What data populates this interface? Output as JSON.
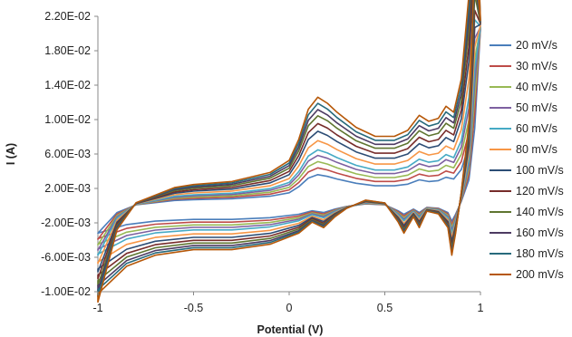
{
  "chart_data": {
    "type": "line",
    "xlabel": "Potential (V)",
    "ylabel": "I (A)",
    "xlim": [
      -1,
      1
    ],
    "ylim": [
      -0.01,
      0.022
    ],
    "x_ticks": [
      "-1",
      "-0.5",
      "0",
      "0.5",
      "1"
    ],
    "y_ticks": [
      "2.20E-02",
      "1.80E-02",
      "1.40E-02",
      "1.00E-02",
      "6.00E-03",
      "2.00E-03",
      "-2.00E-03",
      "-6.00E-03",
      "-1.00E-02"
    ],
    "grid": false,
    "legend_position": "right",
    "base_curve": {
      "anodic_sweep": [
        [
          -1,
          -0.0032
        ],
        [
          -0.9,
          -0.0008
        ],
        [
          -0.8,
          0.0001
        ],
        [
          -0.6,
          0.0006
        ],
        [
          -0.5,
          0.0007
        ],
        [
          -0.3,
          0.0008
        ],
        [
          -0.1,
          0.0011
        ],
        [
          0,
          0.0015
        ],
        [
          0.05,
          0.0022
        ],
        [
          0.1,
          0.0032
        ],
        [
          0.15,
          0.0036
        ],
        [
          0.2,
          0.0034
        ],
        [
          0.25,
          0.0031
        ],
        [
          0.35,
          0.0026
        ],
        [
          0.45,
          0.0023
        ],
        [
          0.55,
          0.0023
        ],
        [
          0.62,
          0.0025
        ],
        [
          0.68,
          0.003
        ],
        [
          0.73,
          0.0028
        ],
        [
          0.78,
          0.0029
        ],
        [
          0.82,
          0.0033
        ],
        [
          0.86,
          0.0031
        ],
        [
          0.9,
          0.0042
        ],
        [
          0.94,
          0.007
        ],
        [
          0.97,
          0.012
        ],
        [
          1,
          0.0205
        ]
      ],
      "cathodic_sweep": [
        [
          1,
          0.0205
        ],
        [
          0.97,
          0.009
        ],
        [
          0.94,
          0.003
        ],
        [
          0.9,
          0.0005
        ],
        [
          0.87,
          -0.001
        ],
        [
          0.85,
          -0.0018
        ],
        [
          0.83,
          -0.0008
        ],
        [
          0.78,
          -0.0003
        ],
        [
          0.72,
          -0.0002
        ],
        [
          0.68,
          -0.0008
        ],
        [
          0.65,
          -0.0004
        ],
        [
          0.6,
          -0.001
        ],
        [
          0.57,
          -0.0006
        ],
        [
          0.5,
          0.0001
        ],
        [
          0.4,
          0.0002
        ],
        [
          0.3,
          -0.0001
        ],
        [
          0.24,
          -0.0004
        ],
        [
          0.18,
          -0.0008
        ],
        [
          0.12,
          -0.0006
        ],
        [
          0.05,
          -0.001
        ],
        [
          -0.1,
          -0.0014
        ],
        [
          -0.3,
          -0.0016
        ],
        [
          -0.5,
          -0.0016
        ],
        [
          -0.7,
          -0.0018
        ],
        [
          -0.85,
          -0.0022
        ],
        [
          -1,
          -0.0032
        ]
      ]
    },
    "series": [
      {
        "name": "20 mV/s",
        "color": "#4a7ebb",
        "anodic_scale": 1.0,
        "cathodic_scale": 1.0
      },
      {
        "name": "30 mV/s",
        "color": "#be4b48",
        "anodic_scale": 1.22,
        "cathodic_scale": 1.2
      },
      {
        "name": "40 mV/s",
        "color": "#98b954",
        "anodic_scale": 1.42,
        "cathodic_scale": 1.4
      },
      {
        "name": "50 mV/s",
        "color": "#7d60a0",
        "anodic_scale": 1.62,
        "cathodic_scale": 1.58
      },
      {
        "name": "60 mV/s",
        "color": "#46aac5",
        "anodic_scale": 1.8,
        "cathodic_scale": 1.76
      },
      {
        "name": "80 mV/s",
        "color": "#f79646",
        "anodic_scale": 2.1,
        "cathodic_scale": 2.05
      },
      {
        "name": "100 mV/s",
        "color": "#2c4d75",
        "anodic_scale": 2.4,
        "cathodic_scale": 2.3
      },
      {
        "name": "120 mV/s",
        "color": "#772c2a",
        "anodic_scale": 2.65,
        "cathodic_scale": 2.52
      },
      {
        "name": "140 mV/s",
        "color": "#5f7530",
        "anodic_scale": 2.9,
        "cathodic_scale": 2.72
      },
      {
        "name": "160 mV/s",
        "color": "#4d3b62",
        "anodic_scale": 3.1,
        "cathodic_scale": 2.9
      },
      {
        "name": "180 mV/s",
        "color": "#276a7c",
        "anodic_scale": 3.3,
        "cathodic_scale": 3.05
      },
      {
        "name": "200 mV/s",
        "color": "#b65708",
        "anodic_scale": 3.5,
        "cathodic_scale": 3.2
      }
    ]
  }
}
